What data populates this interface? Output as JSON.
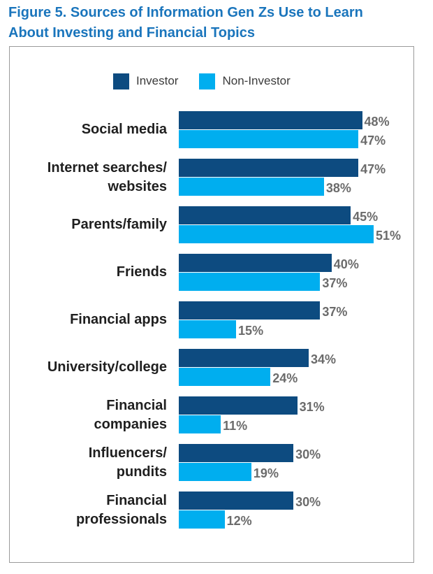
{
  "figure": {
    "title_line1": "Figure 5. Sources of Information Gen Zs Use to Learn",
    "title_line2": "About Investing and Financial Topics"
  },
  "colors": {
    "investor": "#0d4b80",
    "non_investor": "#00aeef",
    "title": "#1a75bc"
  },
  "chart_data": {
    "type": "bar",
    "orientation": "horizontal",
    "title": "Figure 5. Sources of Information Gen Zs Use to Learn About Investing and Financial Topics",
    "xlabel": "",
    "ylabel": "",
    "xlim": [
      0,
      51
    ],
    "value_suffix": "%",
    "legend_position": "top",
    "categories": [
      [
        "Social media"
      ],
      [
        "Internet searches/",
        "websites"
      ],
      [
        "Parents/family"
      ],
      [
        "Friends"
      ],
      [
        "Financial apps"
      ],
      [
        "University/college"
      ],
      [
        "Financial",
        "companies"
      ],
      [
        "Influencers/",
        "pundits"
      ],
      [
        "Financial",
        "professionals"
      ]
    ],
    "series": [
      {
        "name": "Investor",
        "values": [
          48,
          47,
          45,
          40,
          37,
          34,
          31,
          30,
          30
        ]
      },
      {
        "name": "Non-Investor",
        "values": [
          47,
          38,
          51,
          37,
          15,
          24,
          11,
          19,
          12
        ]
      }
    ]
  }
}
